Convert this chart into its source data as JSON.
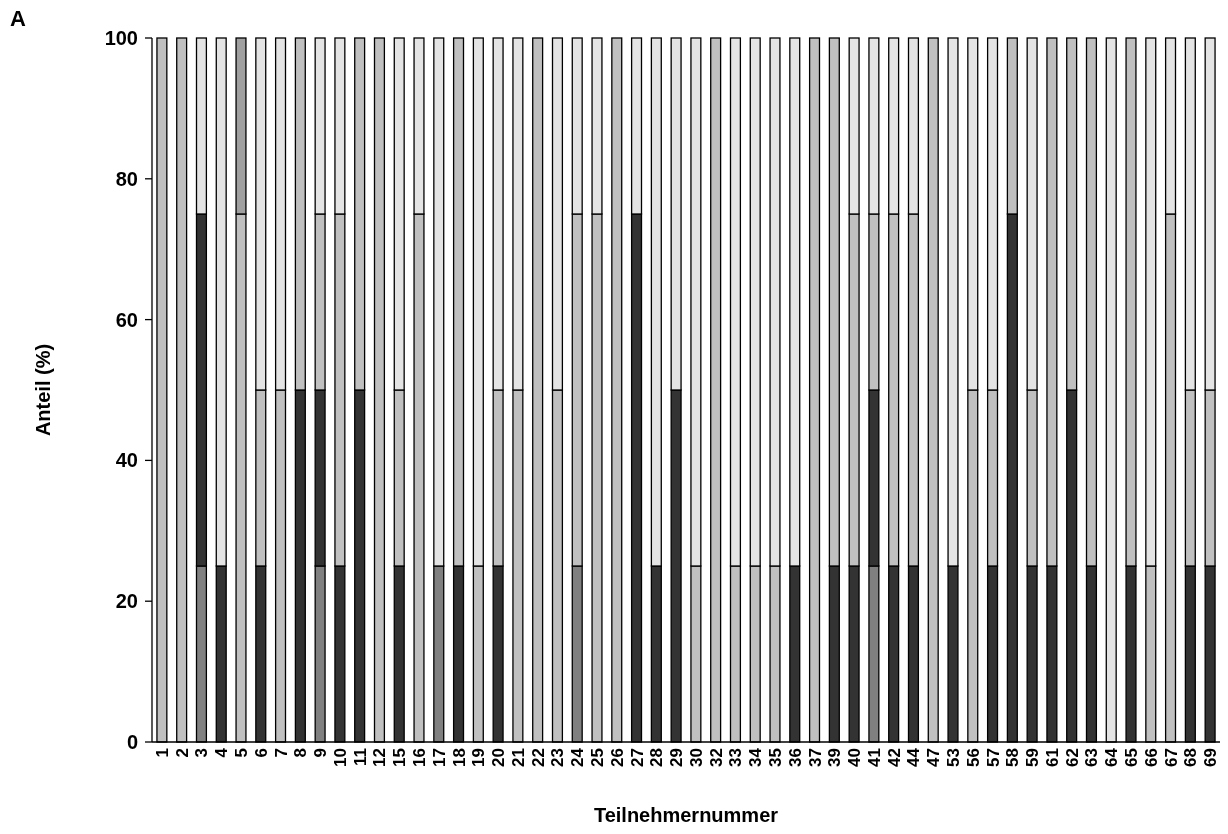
{
  "chart_data": {
    "type": "bar",
    "stacked": true,
    "xlabel": "Teilnehmernummer",
    "ylabel": "Anteil (%)",
    "annotations": [
      "A"
    ],
    "categories": [
      "1",
      "2",
      "3",
      "4",
      "5",
      "6",
      "7",
      "8",
      "9",
      "10",
      "11",
      "12",
      "15",
      "16",
      "17",
      "18",
      "19",
      "20",
      "21",
      "22",
      "23",
      "24",
      "25",
      "26",
      "27",
      "28",
      "29",
      "30",
      "32",
      "33",
      "34",
      "35",
      "36",
      "37",
      "39",
      "40",
      "41",
      "42",
      "44",
      "47",
      "53",
      "56",
      "57",
      "58",
      "59",
      "61",
      "62",
      "63",
      "64",
      "65",
      "66",
      "67",
      "68",
      "69"
    ],
    "ylim": [
      0,
      100
    ],
    "yticks": [
      0,
      20,
      40,
      60,
      80,
      100
    ],
    "grid": false,
    "series": [
      {
        "color": "#808080",
        "values": [
          null,
          null,
          25,
          null,
          null,
          null,
          null,
          null,
          25,
          null,
          null,
          null,
          null,
          null,
          25,
          null,
          null,
          null,
          null,
          null,
          null,
          25,
          null,
          null,
          null,
          null,
          null,
          null,
          null,
          null,
          null,
          null,
          null,
          null,
          null,
          null,
          25,
          null,
          null,
          null,
          null,
          null,
          null,
          null,
          null,
          null,
          null,
          null,
          null,
          null,
          null,
          null,
          null,
          null
        ]
      },
      {
        "color": "#333333",
        "values": [
          null,
          null,
          50,
          25,
          null,
          25,
          null,
          50,
          25,
          25,
          50,
          null,
          25,
          null,
          null,
          25,
          null,
          25,
          null,
          null,
          null,
          null,
          null,
          null,
          75,
          25,
          50,
          null,
          null,
          null,
          null,
          null,
          25,
          null,
          25,
          25,
          25,
          25,
          25,
          null,
          25,
          null,
          25,
          75,
          25,
          25,
          50,
          25,
          null,
          25,
          null,
          null,
          25,
          25
        ]
      },
      {
        "color": "#c0c0c0",
        "values": [
          100,
          100,
          null,
          null,
          75,
          25,
          50,
          50,
          25,
          50,
          50,
          100,
          25,
          75,
          null,
          75,
          25,
          25,
          50,
          100,
          50,
          50,
          75,
          100,
          null,
          null,
          null,
          25,
          100,
          25,
          25,
          25,
          null,
          100,
          75,
          50,
          25,
          50,
          50,
          100,
          null,
          50,
          25,
          25,
          25,
          75,
          50,
          75,
          null,
          75,
          25,
          75,
          25,
          25
        ]
      },
      {
        "color": "#e4e4e4",
        "values": [
          null,
          null,
          25,
          75,
          null,
          50,
          50,
          null,
          25,
          25,
          null,
          null,
          50,
          25,
          75,
          null,
          75,
          50,
          50,
          null,
          50,
          25,
          25,
          null,
          25,
          75,
          50,
          75,
          null,
          75,
          75,
          75,
          75,
          null,
          null,
          25,
          25,
          25,
          25,
          null,
          75,
          50,
          50,
          null,
          50,
          null,
          null,
          null,
          100,
          null,
          75,
          25,
          50,
          50
        ]
      },
      {
        "color": "#a0a0a0",
        "values": [
          null,
          null,
          null,
          null,
          25,
          null,
          null,
          null,
          null,
          null,
          null,
          null,
          null,
          null,
          null,
          null,
          null,
          null,
          null,
          null,
          null,
          null,
          null,
          null,
          null,
          null,
          null,
          null,
          null,
          null,
          null,
          null,
          null,
          null,
          null,
          null,
          null,
          null,
          null,
          null,
          null,
          null,
          null,
          null,
          null,
          null,
          null,
          null,
          null,
          null,
          null,
          null,
          null,
          null
        ]
      }
    ]
  }
}
